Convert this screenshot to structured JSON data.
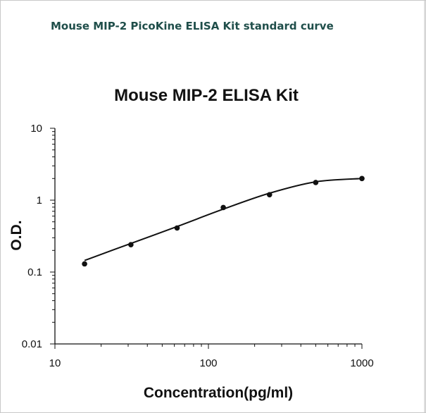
{
  "caption": "Mouse MIP-2 PicoKine ELISA Kit standard curve",
  "chart_data": {
    "type": "scatter",
    "title": "Mouse MIP-2 ELISA Kit",
    "xlabel": "Concentration(pg/ml)",
    "ylabel": "O.D.",
    "x_scale": "log",
    "y_scale": "log",
    "xlim": [
      10,
      1000
    ],
    "ylim": [
      0.01,
      10
    ],
    "x_ticks": [
      "10",
      "100",
      "1000"
    ],
    "y_ticks": [
      "10",
      "1",
      "0.1",
      "0.01"
    ],
    "grid": false,
    "legend": "none",
    "series": [
      {
        "points": [
          {
            "x": 15.6,
            "y": 0.13
          },
          {
            "x": 31.25,
            "y": 0.24
          },
          {
            "x": 62.5,
            "y": 0.41
          },
          {
            "x": 125,
            "y": 0.79
          },
          {
            "x": 250,
            "y": 1.19
          },
          {
            "x": 500,
            "y": 1.76
          },
          {
            "x": 1000,
            "y": 2.0
          }
        ]
      }
    ],
    "fit_curve": [
      {
        "x": 15.6,
        "y": 0.145
      },
      {
        "x": 31.25,
        "y": 0.25
      },
      {
        "x": 62.5,
        "y": 0.43
      },
      {
        "x": 125,
        "y": 0.75
      },
      {
        "x": 250,
        "y": 1.25
      },
      {
        "x": 500,
        "y": 1.8
      },
      {
        "x": 1000,
        "y": 2.0
      }
    ],
    "colors": {
      "points": "#111111",
      "curve": "#111111",
      "axes": "#111111",
      "caption": "#1f4e4a"
    }
  }
}
